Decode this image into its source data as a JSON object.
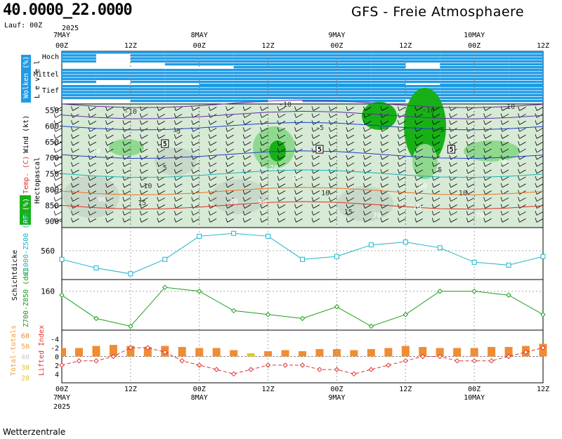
{
  "header": {
    "coordinates": "40.0000_22.0000",
    "run": "Lauf: 00Z",
    "title": "GFS - Freie Atmosphaere",
    "source": "Wetterzentrale"
  },
  "time_axis": {
    "top_labels": [
      {
        "hour": "00Z",
        "date": "7MAY",
        "year": "2025"
      },
      {
        "hour": "12Z",
        "date": "",
        "year": ""
      },
      {
        "hour": "00Z",
        "date": "8MAY",
        "year": ""
      },
      {
        "hour": "12Z",
        "date": "",
        "year": ""
      },
      {
        "hour": "00Z",
        "date": "9MAY",
        "year": ""
      },
      {
        "hour": "12Z",
        "date": "",
        "year": ""
      },
      {
        "hour": "00Z",
        "date": "10MAY",
        "year": ""
      },
      {
        "hour": "12Z",
        "date": "",
        "year": ""
      }
    ],
    "bottom_labels": [
      {
        "hour": "00Z",
        "date": "7MAY",
        "year": "2025"
      },
      {
        "hour": "12Z",
        "date": "",
        "year": ""
      },
      {
        "hour": "00Z",
        "date": "8MAY",
        "year": ""
      },
      {
        "hour": "12Z",
        "date": "",
        "year": ""
      },
      {
        "hour": "00Z",
        "date": "9MAY",
        "year": ""
      },
      {
        "hour": "12Z",
        "date": "",
        "year": ""
      },
      {
        "hour": "00Z",
        "date": "10MAY",
        "year": ""
      },
      {
        "hour": "12Z",
        "date": "",
        "year": ""
      }
    ]
  },
  "colors": {
    "cloud": "#1e9be6",
    "rh_light": "#d6ead6",
    "rh_mid": "#8fd98f",
    "rh_dark": "#17b117",
    "thickness_line": "#1eb4c8",
    "z850_line": "#1aa01a",
    "bar_orange": "#f08c32",
    "bar_yellow": "#dcc81e",
    "lifted_line": "#e03232"
  },
  "chart_data": [
    {
      "type": "heatmap",
      "name": "Wolken",
      "ylabel_left": "Wolken (%)",
      "ylabel_right": "L e v e l",
      "levels": [
        "Hoch",
        "Mittel",
        "Tief"
      ],
      "times_h": [
        0,
        6,
        12,
        18,
        24,
        30,
        36,
        42,
        48,
        54,
        60,
        66,
        72,
        78
      ],
      "cloud_cover_pct": [
        [
          70,
          10,
          70,
          90,
          80,
          100,
          100,
          100,
          100,
          100,
          60,
          100,
          100,
          100
        ],
        [
          80,
          60,
          90,
          90,
          100,
          100,
          95,
          100,
          100,
          100,
          80,
          100,
          100,
          100
        ],
        [
          85,
          90,
          95,
          100,
          100,
          100,
          90,
          95,
          100,
          100,
          90,
          100,
          100,
          100
        ]
      ]
    },
    {
      "type": "heatmap",
      "name": "Wind/Temp/RF",
      "ylabel": "Hectopascal",
      "yticks": [
        "550",
        "600",
        "650",
        "700",
        "750",
        "800",
        "850",
        "900"
      ],
      "legend_left": [
        "Wind (kt)",
        "Temp. (C)",
        "RF (%)"
      ],
      "temperature_isotherm_labels": [
        "-10",
        "-10",
        "-10",
        "-10",
        "-5",
        "-5",
        "-5",
        "5",
        "5",
        "10",
        "10",
        "15",
        "15",
        "10"
      ],
      "rh_labels": [
        "70",
        "70",
        "90",
        "90",
        "90",
        "90",
        "90",
        "70",
        "70",
        "70",
        "70"
      ],
      "wind_labels": [
        "5",
        "5",
        "5"
      ]
    },
    {
      "type": "line",
      "name": "Schichtdicke Z1000-Z500",
      "ylabel": "Z1000-Z500 (dm)",
      "group_label": "Schichtdicke",
      "ytick": "560",
      "x_hours": [
        0,
        6,
        12,
        18,
        24,
        30,
        36,
        42,
        48,
        54,
        60,
        66,
        72,
        78,
        84
      ],
      "values": [
        557,
        554,
        552,
        557,
        565,
        566,
        565,
        557,
        558,
        562,
        563,
        561,
        556,
        555,
        558
      ]
    },
    {
      "type": "line",
      "name": "Z700-Z850",
      "ylabel": "Z700-Z850 (dm)",
      "ytick": "160",
      "x_hours": [
        0,
        6,
        12,
        18,
        24,
        30,
        36,
        42,
        48,
        54,
        60,
        66,
        72,
        78,
        84
      ],
      "values": [
        159,
        153,
        151,
        161,
        160,
        155,
        154,
        153,
        156,
        151,
        154,
        160,
        160,
        159,
        154
      ]
    },
    {
      "type": "bar",
      "name": "Total-totals / Lifted Index",
      "ylabel_left": "Total-totals",
      "ylabel_right": "Lifted Index",
      "yticks_left": [
        "60",
        "50",
        "40",
        "30",
        "20"
      ],
      "yticks_right": [
        "-4",
        "-2",
        "0",
        "2",
        "4"
      ],
      "x_hours": [
        0,
        3,
        6,
        9,
        12,
        15,
        18,
        21,
        24,
        27,
        30,
        33,
        36,
        39,
        42,
        45,
        48,
        51,
        54,
        57,
        60,
        63,
        66,
        69,
        72,
        75,
        78,
        81,
        84
      ],
      "total_totals": [
        48,
        48,
        50,
        51,
        50,
        49,
        50,
        49,
        48,
        48,
        46,
        43,
        45,
        46,
        45,
        47,
        47,
        46,
        47,
        48,
        50,
        49,
        48,
        48,
        48,
        49,
        49,
        50,
        52
      ],
      "lifted_index": [
        2,
        1,
        1,
        0,
        -2,
        -2,
        -1,
        1,
        2,
        3,
        4,
        3,
        2,
        2,
        2,
        3,
        3,
        4,
        3,
        2,
        1,
        0,
        0,
        1,
        1,
        1,
        0,
        -1,
        -2
      ]
    }
  ]
}
